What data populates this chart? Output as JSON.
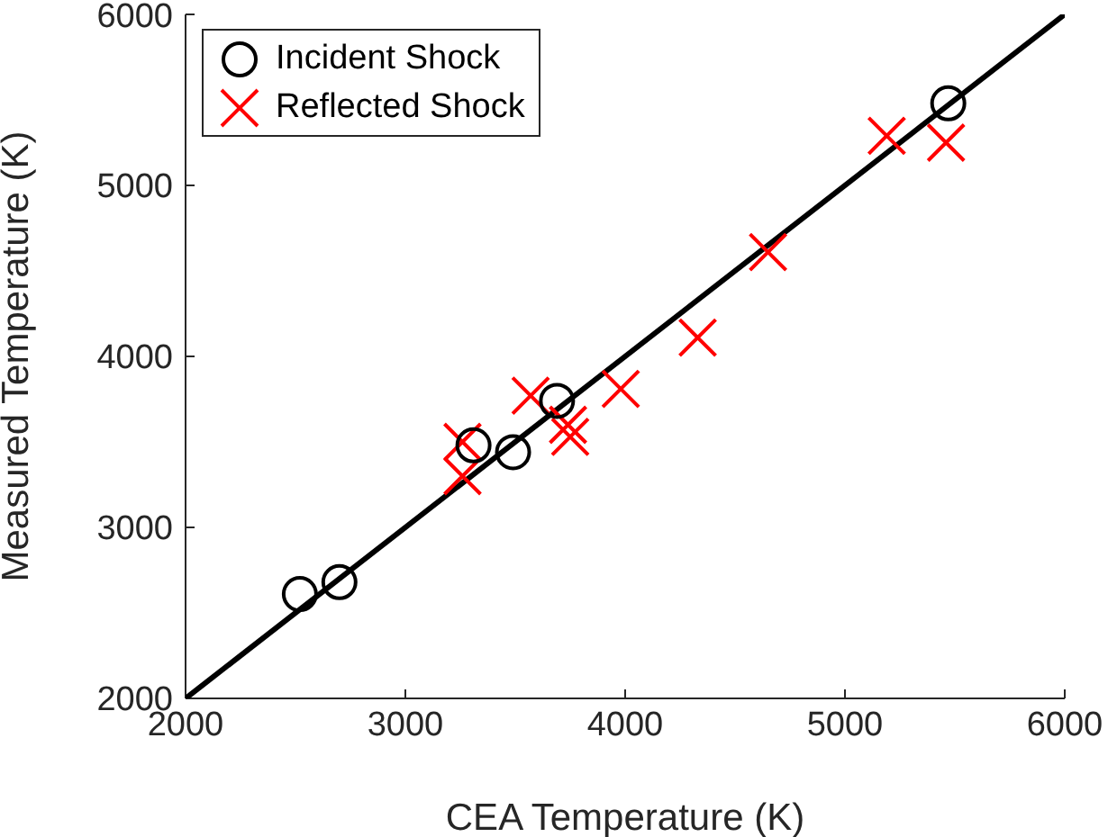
{
  "chart_data": {
    "type": "scatter",
    "xlabel": "CEA Temperature (K)",
    "ylabel": "Measured Temperature (K)",
    "xlim": [
      2000,
      6000
    ],
    "xticks": [
      2000,
      3000,
      4000,
      5000,
      6000
    ],
    "ylim": [
      2000,
      6000
    ],
    "yticks": [
      2000,
      3000,
      4000,
      5000,
      6000
    ],
    "legend": "top left",
    "series": [
      {
        "name": "Incident Shock",
        "color": "#000000",
        "marker": "circle",
        "x": [
          2520,
          2700,
          3310,
          3490,
          3690,
          5470
        ],
        "values": [
          2610,
          2680,
          3480,
          3440,
          3740,
          5480
        ]
      },
      {
        "name": "Reflected Shock",
        "color": "#ff0000",
        "marker": "cross",
        "x": [
          3260,
          3260,
          3570,
          3740,
          3750,
          3980,
          4330,
          4650,
          5190,
          5460
        ],
        "values": [
          3300,
          3500,
          3770,
          3600,
          3530,
          3810,
          4110,
          4610,
          5290,
          5250
        ]
      },
      {
        "type": "line",
        "color": "#000000",
        "x": [
          2000,
          6000
        ],
        "values": [
          2000,
          6000
        ]
      }
    ]
  }
}
